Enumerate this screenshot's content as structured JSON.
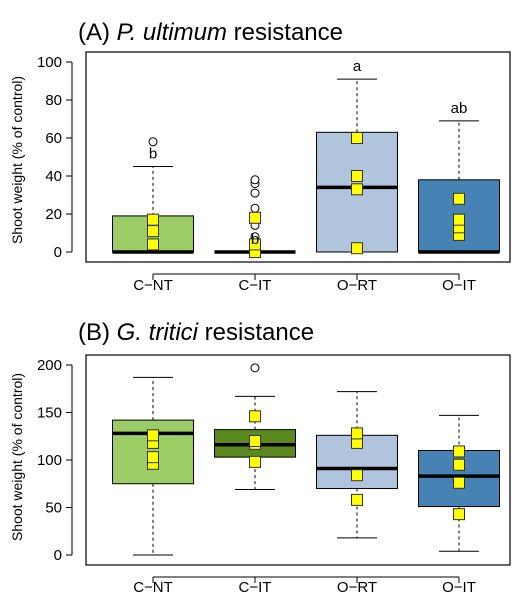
{
  "chart_data": [
    {
      "type": "box",
      "panel_label": "(A)",
      "title_italic": "P. ultimum",
      "title_rest": "resistance",
      "ylabel": "Shoot weight (% of control)",
      "ylim": [
        0,
        100
      ],
      "yticks": [
        0,
        20,
        40,
        60,
        80,
        100
      ],
      "categories": [
        "C−NT",
        "C−IT",
        "O−RT",
        "O−IT"
      ],
      "colors": [
        "#9ccc65",
        "#5a8a1f",
        "#b0c4de",
        "#4682b4"
      ],
      "boxes": [
        {
          "q1": 0,
          "median": 0,
          "q3": 19,
          "whisker_low": 0,
          "whisker_high": 45,
          "outliers": [
            58
          ],
          "points": [
            4,
            11,
            17
          ],
          "letter": "b"
        },
        {
          "q1": 0,
          "median": 0,
          "q3": 0,
          "whisker_low": 0,
          "whisker_high": 0,
          "outliers": [
            2,
            8,
            14,
            23,
            31,
            36,
            38
          ],
          "points": [
            0,
            4,
            18
          ],
          "letter": "b"
        },
        {
          "q1": 0,
          "median": 34,
          "q3": 63,
          "whisker_low": 0,
          "whisker_high": 91,
          "outliers": [],
          "points": [
            2,
            33,
            40,
            60
          ],
          "letter": "a"
        },
        {
          "q1": 0,
          "median": 0,
          "q3": 38,
          "whisker_low": 0,
          "whisker_high": 69,
          "outliers": [],
          "points": [
            9,
            13,
            17,
            28
          ],
          "letter": "ab"
        }
      ]
    },
    {
      "type": "box",
      "panel_label": "(B)",
      "title_italic": "G. tritici",
      "title_rest": "resistance",
      "ylabel": "Shoot weight (% of control)",
      "ylim": [
        0,
        200
      ],
      "yticks": [
        0,
        50,
        100,
        150,
        200
      ],
      "categories": [
        "C−NT",
        "C−IT",
        "O−RT",
        "O−IT"
      ],
      "colors": [
        "#9ccc65",
        "#5a8a1f",
        "#b0c4de",
        "#4682b4"
      ],
      "boxes": [
        {
          "q1": 75,
          "median": 128,
          "q3": 142,
          "whisker_low": 0,
          "whisker_high": 187,
          "outliers": [],
          "points": [
            96,
            103,
            118,
            126
          ],
          "letter": ""
        },
        {
          "q1": 103,
          "median": 116,
          "q3": 132,
          "whisker_low": 69,
          "whisker_high": 167,
          "outliers": [
            197
          ],
          "points": [
            98,
            117,
            120,
            146
          ],
          "letter": ""
        },
        {
          "q1": 70,
          "median": 91,
          "q3": 126,
          "whisker_low": 18,
          "whisker_high": 172,
          "outliers": [],
          "points": [
            58,
            84,
            118,
            128
          ],
          "letter": ""
        },
        {
          "q1": 51,
          "median": 83,
          "q3": 110,
          "whisker_low": 4,
          "whisker_high": 147,
          "outliers": [],
          "points": [
            43,
            76,
            95,
            109
          ],
          "letter": ""
        }
      ]
    }
  ]
}
